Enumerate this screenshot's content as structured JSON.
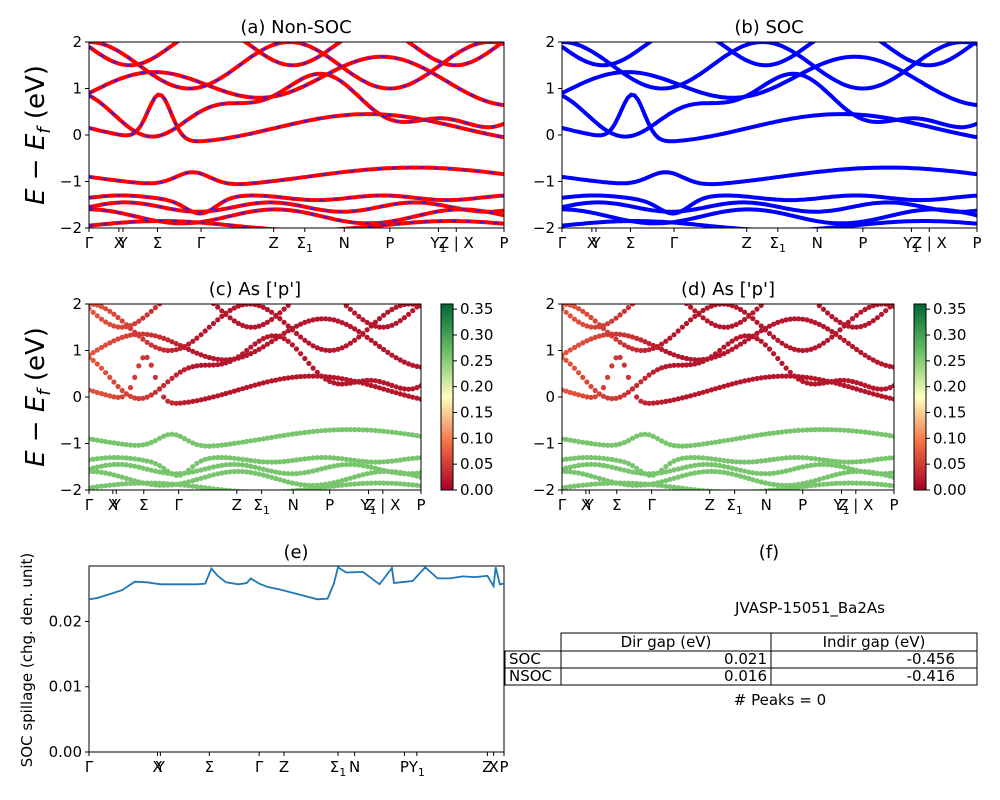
{
  "ylabel_top": "E − E",
  "ylabel_sub": "f",
  "ylabel_unit": " (eV)",
  "kpath_labels": [
    "Γ",
    "X",
    "Y",
    "Σ",
    "Γ",
    "Z",
    "Σ",
    "N",
    "P",
    "Y",
    "Z | X",
    "P"
  ],
  "kpath_subscripts": [
    "",
    "",
    "",
    "",
    "",
    "",
    "1",
    "",
    "",
    "1",
    "",
    ""
  ],
  "spill_labels": [
    "Γ",
    "X",
    "Y",
    "Σ",
    "Γ",
    "Z",
    "Σ",
    "N",
    "P",
    "Y",
    "Z",
    "X",
    "P"
  ],
  "spill_subscripts": [
    "",
    "",
    "",
    "",
    "",
    "",
    "1",
    "",
    "",
    "1",
    "",
    "",
    ""
  ],
  "colors": {
    "nonsoc_red": "#ff0000",
    "nonsoc_blue": "#1f1fff",
    "soc_blue": "#0000ff",
    "spill_line": "#1f77b4"
  },
  "chart_data": [
    {
      "type": "line",
      "title": "(a) Non-SOC",
      "ylim": [
        -2,
        2
      ],
      "yticks": [
        "2",
        "1",
        "0",
        "−1",
        "−2"
      ],
      "xlabel": "",
      "ylabel": "E − E_f (eV)",
      "series_style": "red lines with blue dashes"
    },
    {
      "type": "line",
      "title": "(b) SOC",
      "ylim": [
        -2,
        2
      ],
      "yticks": [
        "2",
        "1",
        "0",
        "−1",
        "−2"
      ],
      "series_style": "blue lines"
    },
    {
      "type": "scatter",
      "title": "(c)  As ['p']",
      "ylim": [
        -2,
        2
      ],
      "yticks": [
        "2",
        "1",
        "0",
        "−1",
        "−2"
      ],
      "colorbar": {
        "ticks": [
          "0.35",
          "0.30",
          "0.25",
          "0.20",
          "0.15",
          "0.10",
          "0.05",
          "0.00"
        ],
        "range": [
          0,
          0.36
        ],
        "cmap": "RdYlGn"
      }
    },
    {
      "type": "scatter",
      "title": "(d) As ['p']",
      "ylim": [
        -2,
        2
      ],
      "yticks": [
        "2",
        "1",
        "0",
        "−1",
        "−2"
      ],
      "colorbar": {
        "ticks": [
          "0.35",
          "0.30",
          "0.25",
          "0.20",
          "0.15",
          "0.10",
          "0.05",
          "0.00"
        ],
        "range": [
          0,
          0.36
        ],
        "cmap": "RdYlGn"
      }
    },
    {
      "type": "line",
      "title": "(e)",
      "ylabel": "SOC spillage (chg. den. unit)",
      "ylim": [
        0,
        0.0285
      ],
      "yticks": [
        "0.02",
        "0.01",
        "0.00"
      ],
      "x": [
        0,
        0.02,
        0.05,
        0.08,
        0.11,
        0.14,
        0.16,
        0.175,
        0.2,
        0.23,
        0.26,
        0.28,
        0.295,
        0.31,
        0.33,
        0.36,
        0.38,
        0.39,
        0.41,
        0.43,
        0.46,
        0.49,
        0.52,
        0.55,
        0.575,
        0.59,
        0.6,
        0.62,
        0.66,
        0.7,
        0.73,
        0.735,
        0.75,
        0.78,
        0.81,
        0.84,
        0.87,
        0.9,
        0.93,
        0.96,
        0.975,
        0.98,
        0.99,
        1.0
      ],
      "y": [
        0.0234,
        0.0236,
        0.0242,
        0.0248,
        0.0261,
        0.026,
        0.0258,
        0.0257,
        0.0257,
        0.0257,
        0.0257,
        0.0258,
        0.0281,
        0.027,
        0.026,
        0.0257,
        0.0259,
        0.0266,
        0.0258,
        0.0253,
        0.0249,
        0.0244,
        0.0239,
        0.0234,
        0.0235,
        0.0258,
        0.0283,
        0.0275,
        0.0276,
        0.0257,
        0.0282,
        0.0259,
        0.026,
        0.0262,
        0.0283,
        0.0266,
        0.0266,
        0.0269,
        0.0268,
        0.027,
        0.0254,
        0.0283,
        0.0257,
        0.0258
      ]
    },
    {
      "type": "table",
      "title": "(f)",
      "subtitle": "JVASP-15051_Ba2As",
      "columns": [
        "Dir gap (eV)",
        "Indir gap (eV)"
      ],
      "rows": [
        {
          "label": "SOC",
          "dir": "0.021",
          "indir": "-0.456"
        },
        {
          "label": "NSOC",
          "dir": "0.016",
          "indir": "-0.416"
        }
      ],
      "footer": "# Peaks = 0"
    }
  ]
}
